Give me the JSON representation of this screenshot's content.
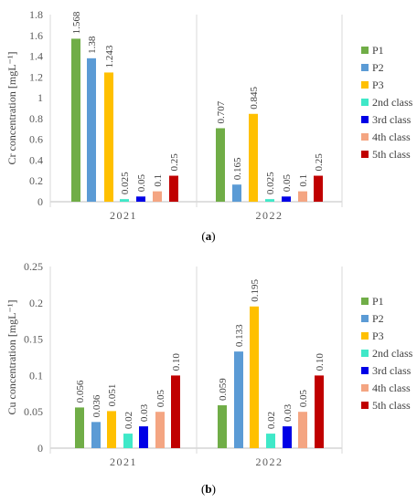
{
  "chart_data": [
    {
      "type": "bar",
      "panel_label": "a",
      "ylabel": "Cr concentration [mgL⁻¹]",
      "ylim": [
        0,
        1.8
      ],
      "yticks": [
        0,
        0.2,
        0.4,
        0.6,
        0.8,
        1,
        1.2,
        1.4,
        1.6,
        1.8
      ],
      "ytick_labels": [
        "0",
        "0.2",
        "0.4",
        "0.6",
        "0.8",
        "1",
        "1.2",
        "1.4",
        "1.6",
        "1.8"
      ],
      "categories": [
        "2021",
        "2022"
      ],
      "grid": false,
      "legend_position": "right",
      "series": [
        {
          "name": "P1",
          "color": "#70AD47",
          "values": [
            1.568,
            0.707
          ],
          "labels": [
            "1.568",
            "0.707"
          ]
        },
        {
          "name": "P2",
          "color": "#5B9BD5",
          "values": [
            1.38,
            0.165
          ],
          "labels": [
            "1.38",
            "0.165"
          ]
        },
        {
          "name": "P3",
          "color": "#FFC000",
          "values": [
            1.243,
            0.845
          ],
          "labels": [
            "1.243",
            "0.845"
          ]
        },
        {
          "name": "2nd class",
          "color": "#3FE8C8",
          "values": [
            0.025,
            0.025
          ],
          "labels": [
            "0.025",
            "0.025"
          ]
        },
        {
          "name": "3rd class",
          "color": "#0000E6",
          "values": [
            0.05,
            0.05
          ],
          "labels": [
            "0.05",
            "0.05"
          ]
        },
        {
          "name": "4th class",
          "color": "#F4A582",
          "values": [
            0.1,
            0.1
          ],
          "labels": [
            "0.1",
            "0.1"
          ]
        },
        {
          "name": "5th class",
          "color": "#C00000",
          "values": [
            0.25,
            0.25
          ],
          "labels": [
            "0.25",
            "0.25"
          ]
        }
      ]
    },
    {
      "type": "bar",
      "panel_label": "b",
      "ylabel": "Cu concentration [mgL⁻¹]",
      "ylim": [
        0,
        0.25
      ],
      "yticks": [
        0,
        0.05,
        0.1,
        0.15,
        0.2,
        0.25
      ],
      "ytick_labels": [
        "0",
        "0.05",
        "0.1",
        "0.15",
        "0.2",
        "0.25"
      ],
      "categories": [
        "2021",
        "2022"
      ],
      "grid": false,
      "legend_position": "right",
      "series": [
        {
          "name": "P1",
          "color": "#70AD47",
          "values": [
            0.056,
            0.059
          ],
          "labels": [
            "0.056",
            "0.059"
          ]
        },
        {
          "name": "P2",
          "color": "#5B9BD5",
          "values": [
            0.036,
            0.133
          ],
          "labels": [
            "0.036",
            "0.133"
          ]
        },
        {
          "name": "P3",
          "color": "#FFC000",
          "values": [
            0.051,
            0.195
          ],
          "labels": [
            "0.051",
            "0.195"
          ]
        },
        {
          "name": "2nd class",
          "color": "#3FE8C8",
          "values": [
            0.02,
            0.02
          ],
          "labels": [
            "0.02",
            "0.02"
          ]
        },
        {
          "name": "3rd class",
          "color": "#0000E6",
          "values": [
            0.03,
            0.03
          ],
          "labels": [
            "0.03",
            "0.03"
          ]
        },
        {
          "name": "4th class",
          "color": "#F4A582",
          "values": [
            0.05,
            0.05
          ],
          "labels": [
            "0.05",
            "0.05"
          ]
        },
        {
          "name": "5th class",
          "color": "#C00000",
          "values": [
            0.1,
            0.1
          ],
          "labels": [
            "0.10",
            "0.10"
          ]
        }
      ]
    }
  ]
}
